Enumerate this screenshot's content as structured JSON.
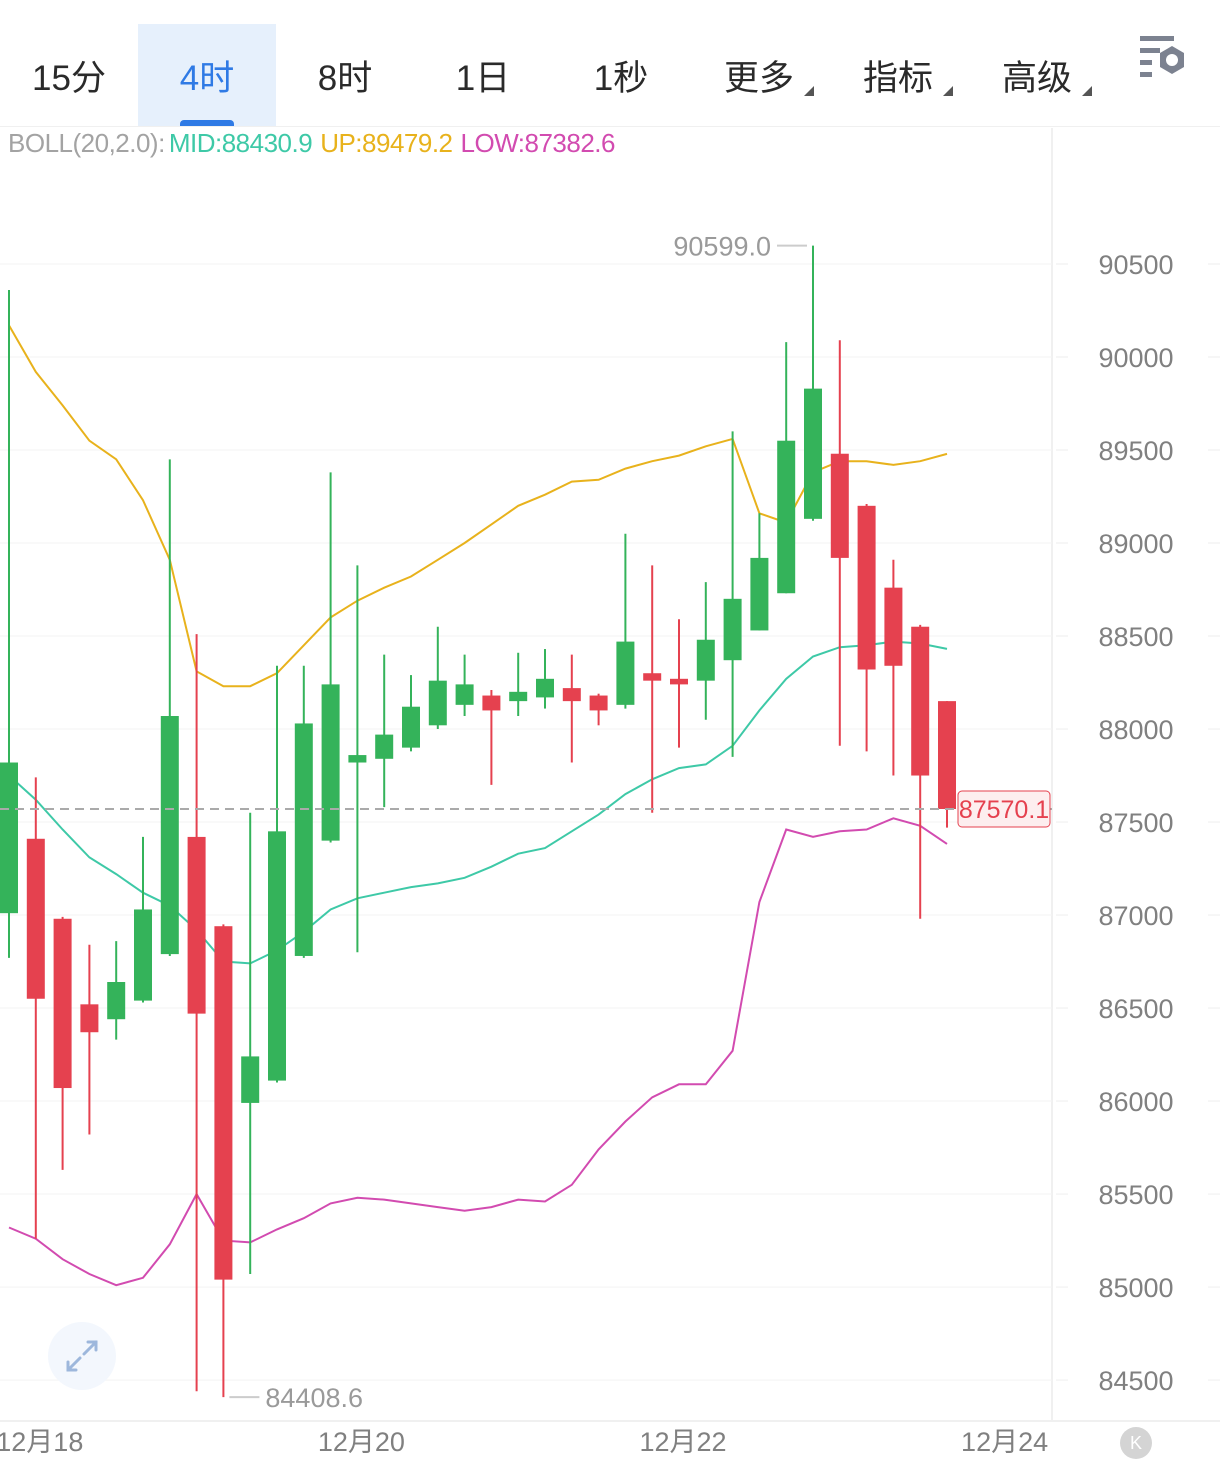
{
  "tabs": [
    {
      "label": "15分",
      "active": false,
      "dropdown": false
    },
    {
      "label": "4时",
      "active": true,
      "dropdown": false
    },
    {
      "label": "8时",
      "active": false,
      "dropdown": false
    },
    {
      "label": "1日",
      "active": false,
      "dropdown": false
    },
    {
      "label": "1秒",
      "active": false,
      "dropdown": false
    },
    {
      "label": "更多",
      "active": false,
      "dropdown": true
    },
    {
      "label": "指标",
      "active": false,
      "dropdown": true
    },
    {
      "label": "高级",
      "active": false,
      "dropdown": true
    }
  ],
  "settings_icon": "chart-settings-icon",
  "indicator": {
    "name": "BOLL(20,2.0):",
    "mid": "MID:88430.9",
    "up": "UP:89479.2",
    "low": "LOW:87382.6"
  },
  "colors": {
    "up": "#34b35a",
    "down": "#e5414f",
    "mid": "#3ec9a7",
    "upper": "#e8b21c",
    "lower": "#d24bb0",
    "accent": "#2f7ae5",
    "indicator_label": "#999999"
  },
  "expand_icon": "expand-arrows-icon",
  "k_button": "K",
  "chart_data": {
    "type": "candlestick",
    "y_ticks": [
      90500,
      90000,
      89500,
      89000,
      88500,
      88000,
      87500,
      87000,
      86500,
      86000,
      85500,
      85000,
      84500
    ],
    "ylim": [
      84250,
      91000
    ],
    "grid": true,
    "x_labels": [
      {
        "label": "12月18",
        "index": 1
      },
      {
        "label": "12月20",
        "index": 13
      },
      {
        "label": "12月22",
        "index": 25
      },
      {
        "label": "12月24",
        "index": 37
      }
    ],
    "last_price": "87570.1",
    "max_label": "90599.0",
    "min_label": "84408.6",
    "ohlc": [
      [
        87010,
        90360,
        86770,
        87820
      ],
      [
        87410,
        87740,
        85260,
        86550
      ],
      [
        86980,
        86990,
        85630,
        86070
      ],
      [
        86520,
        86840,
        85820,
        86370
      ],
      [
        86440,
        86860,
        86330,
        86640
      ],
      [
        86540,
        87420,
        86530,
        87030
      ],
      [
        86790,
        89450,
        86780,
        88070
      ],
      [
        87420,
        88510,
        84440,
        86470
      ],
      [
        86940,
        86950,
        84408.6,
        85040
      ],
      [
        85990,
        87550,
        85070,
        86240
      ],
      [
        86110,
        88340,
        86100,
        87450
      ],
      [
        86780,
        88340,
        86770,
        88030
      ],
      [
        87400,
        89380,
        87390,
        88240
      ],
      [
        87820,
        88880,
        86800,
        87860
      ],
      [
        87840,
        88400,
        87580,
        87970
      ],
      [
        87900,
        88290,
        87880,
        88120
      ],
      [
        88020,
        88550,
        88000,
        88260
      ],
      [
        88130,
        88400,
        88070,
        88240
      ],
      [
        88180,
        88210,
        87700,
        88100
      ],
      [
        88150,
        88410,
        88070,
        88200
      ],
      [
        88170,
        88430,
        88110,
        88270
      ],
      [
        88220,
        88400,
        87820,
        88150
      ],
      [
        88180,
        88190,
        88020,
        88100
      ],
      [
        88130,
        89050,
        88110,
        88470
      ],
      [
        88300,
        88880,
        87550,
        88260
      ],
      [
        88270,
        88590,
        87900,
        88240
      ],
      [
        88260,
        88790,
        88050,
        88480
      ],
      [
        88370,
        89600,
        87850,
        88700
      ],
      [
        88530,
        89160,
        88530,
        88920
      ],
      [
        88730,
        90080,
        88730,
        89550
      ],
      [
        89130,
        90599.0,
        89120,
        89830
      ],
      [
        89480,
        90090,
        87910,
        88920
      ],
      [
        89200,
        89210,
        87880,
        88320
      ],
      [
        88760,
        88910,
        87750,
        88340
      ],
      [
        88550,
        88560,
        86980,
        87750
      ],
      [
        88150,
        88150,
        87470,
        87570.1
      ]
    ],
    "series": [
      {
        "name": "UP",
        "values": [
          90170,
          89920,
          89740,
          89550,
          89450,
          89230,
          88910,
          88310,
          88230,
          88230,
          88300,
          88450,
          88600,
          88690,
          88760,
          88820,
          88910,
          89000,
          89100,
          89200,
          89260,
          89330,
          89340,
          89400,
          89440,
          89470,
          89520,
          89560,
          89160,
          89110,
          89380,
          89440,
          89440,
          89420,
          89440,
          89479.2
        ]
      },
      {
        "name": "MID",
        "values": [
          87750,
          87620,
          87460,
          87310,
          87220,
          87120,
          87050,
          86920,
          86750,
          86740,
          86810,
          86910,
          87030,
          87090,
          87120,
          87150,
          87170,
          87200,
          87260,
          87330,
          87360,
          87450,
          87540,
          87650,
          87730,
          87790,
          87810,
          87910,
          88100,
          88270,
          88390,
          88440,
          88450,
          88470,
          88460,
          88430.9
        ]
      },
      {
        "name": "LOW",
        "values": [
          85320,
          85260,
          85150,
          85070,
          85010,
          85050,
          85230,
          85500,
          85250,
          85240,
          85310,
          85370,
          85450,
          85480,
          85470,
          85450,
          85430,
          85410,
          85430,
          85470,
          85460,
          85550,
          85740,
          85890,
          86020,
          86090,
          86090,
          86270,
          87070,
          87460,
          87420,
          87450,
          87460,
          87520,
          87480,
          87382.6
        ]
      }
    ]
  }
}
